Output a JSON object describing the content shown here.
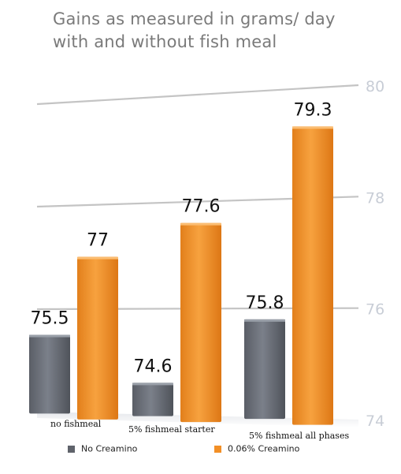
{
  "title": "Gains as measured in grams/ day with and without fish meal",
  "colors": {
    "no_creamino": "#6e737c",
    "creamino": "#f28f26",
    "gridline": "#c4c4c4",
    "tick": "#c8cdd6"
  },
  "legend": {
    "no_creamino": "No Creamino",
    "creamino": "0.06% Creamino"
  },
  "chart_data": {
    "type": "bar",
    "title": "Gains as measured in grams/ day with and without fish meal",
    "categories": [
      "no fishmeal",
      "5% fishmeal starter",
      "5% fishmeal all phases"
    ],
    "series": [
      {
        "name": "No Creamino",
        "values": [
          75.5,
          74.6,
          75.8
        ],
        "labels": [
          "75.5",
          "74.6",
          "75.8"
        ]
      },
      {
        "name": "0.06% Creamino",
        "values": [
          77,
          77.6,
          79.3
        ],
        "labels": [
          "77",
          "77.6",
          "79.3"
        ]
      }
    ],
    "ylim": [
      74,
      80
    ],
    "yticks": [
      74,
      76,
      78,
      80
    ],
    "grid": true,
    "legend_position": "bottom"
  }
}
